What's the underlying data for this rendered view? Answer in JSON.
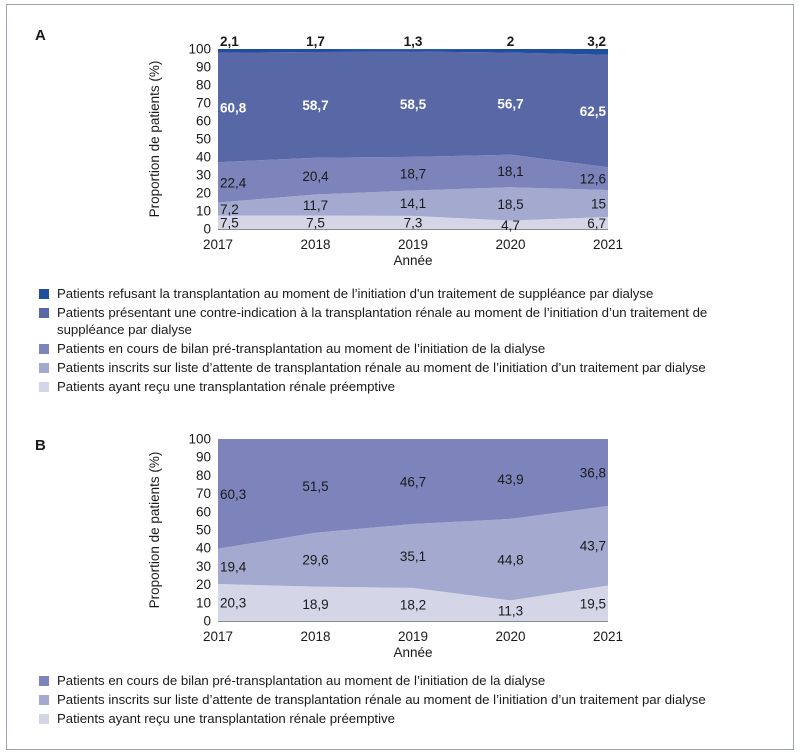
{
  "chart_data": [
    {
      "panel": "A",
      "type": "area",
      "stacked": true,
      "ylabel": "Proportion de patients (%)",
      "xlabel": "Année",
      "ylim": [
        0,
        100
      ],
      "yticks": [
        "0",
        "10",
        "20",
        "30",
        "40",
        "50",
        "60",
        "70",
        "80",
        "90",
        "100"
      ],
      "x": [
        "2017",
        "2018",
        "2019",
        "2020",
        "2021"
      ],
      "series": [
        {
          "name": "Patients ayant reçu une transplantation rénale préemptive",
          "values": [
            7.5,
            7.5,
            7.3,
            4.7,
            6.7
          ],
          "labels": [
            "7,5",
            "7,5",
            "7,3",
            "4,7",
            "6,7"
          ],
          "color": "#d4d6e8"
        },
        {
          "name": "Patients inscrits sur liste d’attente de transplantation rénale au moment de l’initiation d’un traitement par dialyse",
          "values": [
            7.2,
            11.7,
            14.1,
            18.5,
            15
          ],
          "labels": [
            "7,2",
            "11,7",
            "14,1",
            "18,5",
            "15"
          ],
          "color": "#a4a9cf"
        },
        {
          "name": "Patients en cours de bilan pré-transplantation au moment de l’initiation de la dialyse",
          "values": [
            22.4,
            20.4,
            18.7,
            18.1,
            12.6
          ],
          "labels": [
            "22,4",
            "20,4",
            "18,7",
            "18,1",
            "12,6"
          ],
          "color": "#7c84bb"
        },
        {
          "name": "Patients présentant une contre-indication à la transplantation rénale au moment de l’initiation d’un traitement de suppléance par dialyse",
          "values": [
            60.8,
            58.7,
            58.5,
            56.7,
            62.5
          ],
          "labels": [
            "60,8",
            "58,7",
            "58,5",
            "56,7",
            "62,5"
          ],
          "color": "#5867a6"
        },
        {
          "name": "Patients refusant la transplantation au moment de l’initiation d'un traitement de suppléance par dialyse",
          "values": [
            2.1,
            1.7,
            1.3,
            2,
            3.2
          ],
          "labels": [
            "2,1",
            "1,7",
            "1,3",
            "2",
            "3,2"
          ],
          "color": "#1f4e9c"
        }
      ]
    },
    {
      "panel": "B",
      "type": "area",
      "stacked": true,
      "ylabel": "Proportion de patients (%)",
      "xlabel": "Année",
      "ylim": [
        0,
        100
      ],
      "yticks": [
        "0",
        "10",
        "20",
        "30",
        "40",
        "50",
        "60",
        "70",
        "80",
        "90",
        "100"
      ],
      "x": [
        "2017",
        "2018",
        "2019",
        "2020",
        "2021"
      ],
      "series": [
        {
          "name": "Patients ayant reçu une transplantation rénale préemptive",
          "values": [
            20.3,
            18.9,
            18.2,
            11.3,
            19.5
          ],
          "labels": [
            "20,3",
            "18,9",
            "18,2",
            "11,3",
            "19,5"
          ],
          "color": "#d4d6e8"
        },
        {
          "name": "Patients inscrits sur liste d’attente de transplantation rénale au moment de l’initiation d’un traitement par dialyse",
          "values": [
            19.4,
            29.6,
            35.1,
            44.8,
            43.7
          ],
          "labels": [
            "19,4",
            "29,6",
            "35,1",
            "44,8",
            "43,7"
          ],
          "color": "#a4a9cf"
        },
        {
          "name": "Patients en cours de bilan pré-transplantation au moment de l’initiation de la dialyse",
          "values": [
            60.3,
            51.5,
            46.7,
            43.9,
            36.8
          ],
          "labels": [
            "60,3",
            "51,5",
            "46,7",
            "43,9",
            "36,8"
          ],
          "color": "#7c84bb"
        }
      ]
    }
  ],
  "panels": {
    "A": {
      "letter": "A"
    },
    "B": {
      "letter": "B"
    }
  },
  "legendA": [
    {
      "label": "Patients refusant la transplantation au moment de l’initiation d'un traitement de suppléance par dialyse",
      "color": "#1f4e9c"
    },
    {
      "label": "Patients présentant une contre-indication à la transplantation rénale au moment de l’initiation d’un traitement de suppléance par dialyse",
      "color": "#5867a6"
    },
    {
      "label": "Patients en cours de bilan pré-transplantation au moment de l’initiation de la dialyse",
      "color": "#7c84bb"
    },
    {
      "label": "Patients inscrits sur liste d’attente de transplantation rénale au moment de l’initiation d’un traitement par dialyse",
      "color": "#a4a9cf"
    },
    {
      "label": "Patients ayant reçu une transplantation rénale préemptive",
      "color": "#d4d6e8"
    }
  ],
  "legendB": [
    {
      "label": "Patients en cours de bilan pré-transplantation au moment de l’initiation de la dialyse",
      "color": "#7c84bb"
    },
    {
      "label": "Patients inscrits sur liste d’attente de transplantation rénale au moment de l’initiation d’un traitement par dialyse",
      "color": "#a4a9cf"
    },
    {
      "label": "Patients ayant reçu une transplantation rénale préemptive",
      "color": "#d4d6e8"
    }
  ]
}
